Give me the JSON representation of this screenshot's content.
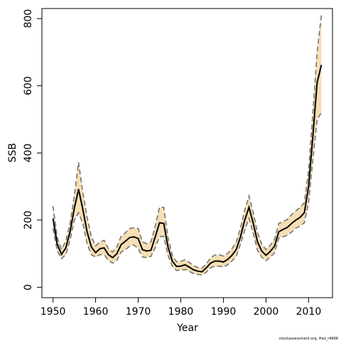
{
  "chart_data": {
    "type": "line",
    "title": "",
    "xlabel": "Year",
    "ylabel": "SSB",
    "xlim": [
      1947.4,
      2015.6
    ],
    "ylim": [
      -31,
      830
    ],
    "x_ticks": [
      "1950",
      "1960",
      "1970",
      "1980",
      "1990",
      "2000",
      "2010"
    ],
    "y_ticks": [
      "0",
      "200",
      "400",
      "600",
      "800"
    ],
    "grid": false,
    "legend": "none",
    "credit": "stockassessment.org, Had_r4668",
    "colors": {
      "estimate": "#000000",
      "bounds": "#6e6e6e",
      "band": "#f5deb3"
    },
    "x": [
      1950,
      1951,
      1952,
      1953,
      1954,
      1955,
      1956,
      1957,
      1958,
      1959,
      1960,
      1961,
      1962,
      1963,
      1964,
      1965,
      1966,
      1967,
      1968,
      1969,
      1970,
      1971,
      1972,
      1973,
      1974,
      1975,
      1976,
      1977,
      1978,
      1979,
      1980,
      1981,
      1982,
      1983,
      1984,
      1985,
      1986,
      1987,
      1988,
      1989,
      1990,
      1991,
      1992,
      1993,
      1994,
      1995,
      1996,
      1997,
      1998,
      1999,
      2000,
      2001,
      2002,
      2003,
      2004,
      2005,
      2006,
      2007,
      2008,
      2009,
      2010,
      2011,
      2012,
      2013
    ],
    "series": [
      {
        "name": "estimate",
        "values": [
          205,
          128,
          98,
          117,
          165,
          235,
          292,
          232,
          165,
          120,
          103,
          115,
          117,
          97,
          88,
          100,
          127,
          137,
          148,
          150,
          145,
          112,
          108,
          110,
          150,
          192,
          190,
          120,
          78,
          62,
          63,
          67,
          60,
          52,
          48,
          46,
          58,
          72,
          78,
          78,
          75,
          83,
          95,
          112,
          150,
          200,
          238,
          190,
          135,
          108,
          95,
          107,
          122,
          165,
          172,
          178,
          190,
          200,
          208,
          222,
          300,
          450,
          610,
          662
        ]
      },
      {
        "name": "lower",
        "values": [
          175,
          108,
          85,
          97,
          140,
          200,
          222,
          190,
          130,
          97,
          90,
          97,
          97,
          80,
          72,
          80,
          105,
          112,
          122,
          126,
          115,
          90,
          88,
          92,
          118,
          150,
          152,
          95,
          63,
          50,
          51,
          53,
          47,
          41,
          38,
          37,
          45,
          58,
          63,
          63,
          60,
          67,
          78,
          92,
          128,
          170,
          205,
          160,
          110,
          90,
          79,
          90,
          102,
          146,
          150,
          155,
          164,
          176,
          182,
          192,
          252,
          380,
          500,
          520
        ]
      },
      {
        "name": "upper",
        "values": [
          242,
          148,
          113,
          137,
          190,
          272,
          372,
          282,
          208,
          150,
          123,
          135,
          140,
          115,
          105,
          120,
          152,
          162,
          175,
          177,
          175,
          135,
          130,
          135,
          182,
          238,
          238,
          148,
          95,
          76,
          77,
          82,
          74,
          64,
          59,
          57,
          70,
          88,
          96,
          97,
          93,
          101,
          115,
          134,
          176,
          230,
          272,
          222,
          162,
          128,
          112,
          125,
          142,
          190,
          195,
          202,
          216,
          228,
          237,
          252,
          348,
          520,
          700,
          812
        ]
      }
    ]
  }
}
